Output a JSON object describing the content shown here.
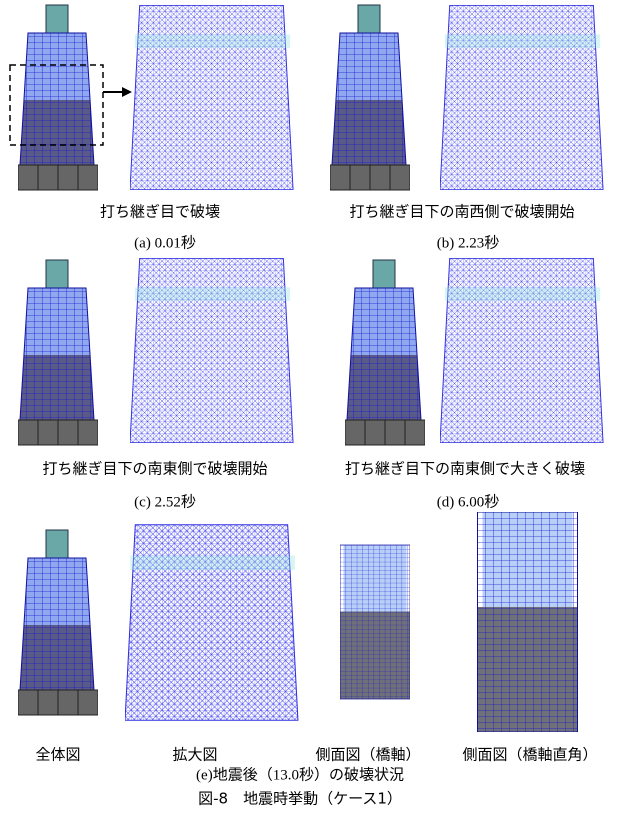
{
  "panels": [
    {
      "description": "打ち継ぎ目で破壊",
      "label": "(a) 0.01秒"
    },
    {
      "description": "打ち継ぎ目下の南西側で破壊開始",
      "label": "(b) 2.23秒"
    },
    {
      "description": "打ち継ぎ目下の南東側で破壊開始",
      "label": "(c) 2.52秒"
    },
    {
      "description": "打ち継ぎ目下の南東側で大きく破壊",
      "label": "(d) 6.00秒"
    }
  ],
  "panel_e": {
    "views": [
      "全体図",
      "拡大図",
      "側面図（橋軸）",
      "側面図（橋軸直角）"
    ],
    "label": "(e)地震後（13.0秒）の破壊状況"
  },
  "figure_caption": "図-8　地震時挙動（ケース1）"
}
